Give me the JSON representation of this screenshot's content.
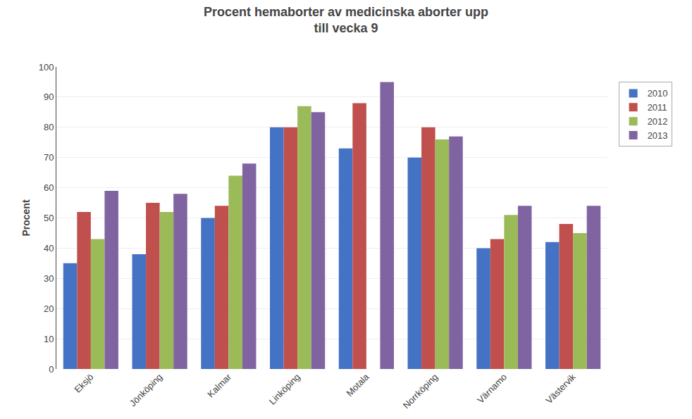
{
  "chart_data": {
    "type": "bar",
    "title": "Procent hemaborter av medicinska aborter upp\ntill vecka 9",
    "y_label": "Procent",
    "categories": [
      "Eksjö",
      "Jönköping",
      "Kalmar",
      "Linköping",
      "Motala",
      "Norrköping",
      "Värnamo",
      "Västervik"
    ],
    "series": [
      {
        "name": "2010",
        "color": "#4472C4",
        "values": [
          35,
          38,
          50,
          80,
          73,
          70,
          40,
          42
        ]
      },
      {
        "name": "2011",
        "color": "#C0504D",
        "values": [
          52,
          55,
          54,
          80,
          88,
          80,
          43,
          48
        ]
      },
      {
        "name": "2012",
        "color": "#9BBB59",
        "values": [
          43,
          52,
          64,
          87,
          0,
          76,
          51,
          45
        ]
      },
      {
        "name": "2013",
        "color": "#8064A2",
        "values": [
          59,
          58,
          68,
          85,
          95,
          77,
          54,
          54
        ]
      }
    ],
    "ylim": [
      0,
      100
    ],
    "yticks": [
      0,
      10,
      20,
      30,
      40,
      50,
      60,
      70,
      80,
      90,
      100
    ],
    "grid": true,
    "legend": "right"
  }
}
